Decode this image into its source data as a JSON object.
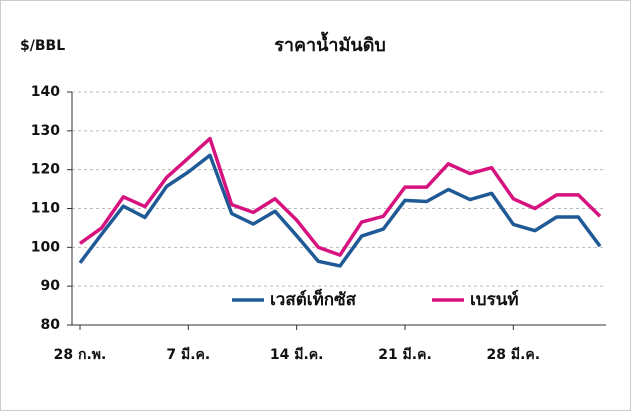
{
  "chart_data": {
    "type": "line",
    "title": "ราคาน้ำมันดิบ",
    "y_label": "$/BBL",
    "categories": [
      "28 ก.พ.",
      null,
      null,
      null,
      null,
      "7 มี.ค.",
      null,
      null,
      null,
      null,
      "14 มี.ค.",
      null,
      null,
      null,
      null,
      "21 มี.ค.",
      null,
      null,
      null,
      null,
      "28 มี.ค.",
      null,
      null,
      null,
      null
    ],
    "series": [
      {
        "name": "เวสต์เท็กซัส",
        "color": "#1f5a96",
        "values": [
          96,
          103.4,
          110.6,
          107.7,
          115.7,
          119.4,
          123.7,
          108.7,
          106,
          109.3,
          103,
          96.4,
          95.2,
          102.9,
          104.7,
          112.1,
          111.8,
          114.9,
          112.3,
          113.9,
          105.9,
          104.3,
          107.8,
          107.8,
          100.3
        ]
      },
      {
        "name": "เบรนท์",
        "color": "#d6127f",
        "values": [
          101,
          105,
          113,
          110.5,
          118,
          123,
          128,
          111,
          109,
          112.5,
          107,
          100,
          98,
          106.5,
          108,
          115.5,
          115.5,
          121.5,
          119,
          120.5,
          112.5,
          110,
          113.5,
          113.5,
          108
        ]
      }
    ],
    "ylim": [
      80,
      140
    ],
    "yticks": [
      80,
      90,
      100,
      110,
      120,
      130,
      140
    ],
    "grid": true
  }
}
